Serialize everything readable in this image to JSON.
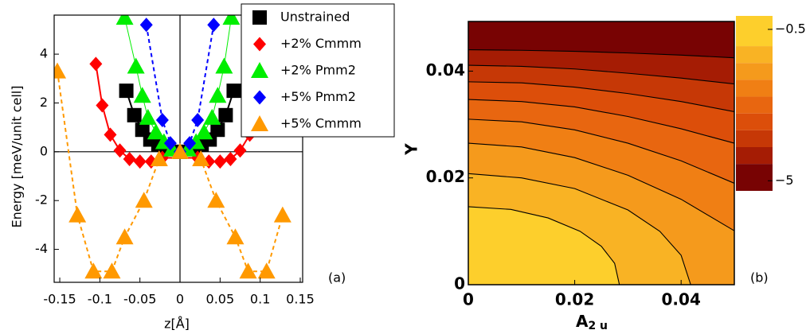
{
  "chart_data": [
    {
      "type": "line",
      "xlabel": "z[Å]",
      "ylabel": "Energy [meV/unit cell]",
      "panel_label": "(a)",
      "xlim": [
        -0.157,
        0.153
      ],
      "ylim": [
        -5.35,
        5.6
      ],
      "xticks": [
        -0.15,
        -0.1,
        -0.05,
        0,
        0.05,
        0.1,
        0.15
      ],
      "yticks": [
        -4,
        -2,
        0,
        2,
        4
      ],
      "zero_lines": true,
      "legend": "upper right",
      "series": [
        {
          "name": "Unstrained",
          "color": "#000000",
          "marker": "square",
          "linestyle": "solid",
          "x": [
            -0.067,
            -0.057,
            -0.047,
            -0.037,
            -0.027,
            -0.017,
            0,
            0.017,
            0.027,
            0.037,
            0.047,
            0.057,
            0.067
          ],
          "values": [
            2.5,
            1.5,
            0.9,
            0.5,
            0.3,
            0.15,
            0,
            0.15,
            0.3,
            0.5,
            0.9,
            1.5,
            2.5
          ]
        },
        {
          "name": "+2% Cmmm",
          "color": "#ff0000",
          "marker": "diamond",
          "linestyle": "solid",
          "x": [
            -0.105,
            -0.097,
            -0.087,
            -0.075,
            -0.063,
            -0.05,
            -0.036,
            -0.022,
            0.022,
            0.036,
            0.05,
            0.063,
            0.075,
            0.087,
            0.097,
            0.105
          ],
          "values": [
            3.6,
            1.9,
            0.7,
            0.05,
            -0.3,
            -0.4,
            -0.4,
            -0.25,
            -0.25,
            -0.4,
            -0.4,
            -0.3,
            0.05,
            0.7,
            1.9,
            3.6
          ]
        },
        {
          "name": "+2% Pmm2",
          "color": "#00ee00",
          "marker": "triangle",
          "linestyle": "thin",
          "x": [
            -0.069,
            -0.055,
            -0.047,
            -0.04,
            -0.03,
            -0.02,
            -0.01,
            0.01,
            0.02,
            0.03,
            0.04,
            0.047,
            0.055,
            0.064
          ],
          "values": [
            5.5,
            3.5,
            2.3,
            1.4,
            0.8,
            0.4,
            0.1,
            0.1,
            0.4,
            0.8,
            1.4,
            2.3,
            3.5,
            5.5
          ]
        },
        {
          "name": "+5% Pmm2",
          "color": "#0000ff",
          "marker": "diamond",
          "linestyle": "dashed",
          "x": [
            -0.042,
            -0.022,
            -0.012,
            0,
            0.012,
            0.022,
            0.042
          ],
          "values": [
            5.2,
            1.3,
            0.35,
            0,
            0.35,
            1.3,
            5.2
          ]
        },
        {
          "name": "+5% Cmmm",
          "color": "#ff9900",
          "marker": "triangle",
          "linestyle": "dashed",
          "x": [
            -0.153,
            -0.128,
            -0.108,
            -0.085,
            -0.069,
            -0.045,
            -0.026,
            0,
            0.026,
            0.045,
            0.069,
            0.085,
            0.108,
            0.128
          ],
          "values": [
            3.3,
            -2.6,
            -4.9,
            -4.9,
            -3.5,
            -2.0,
            -0.3,
            0,
            -0.3,
            -2.0,
            -3.5,
            -4.9,
            -4.9,
            -2.6
          ]
        }
      ]
    },
    {
      "type": "contour",
      "xlabel": "A",
      "xlabel_sub": "2 u",
      "ylabel": "Y",
      "panel_label": "(b)",
      "xlim": [
        0,
        0.05
      ],
      "ylim": [
        0,
        0.0493
      ],
      "xticks": [
        0,
        0.02,
        0.04
      ],
      "yticks": [
        0,
        0.02,
        0.04
      ],
      "contours": [
        {
          "level": -1,
          "x": [
            0,
            0.008,
            0.015,
            0.021,
            0.025,
            0.0275,
            0.0284
          ],
          "y": [
            0.0146,
            0.0141,
            0.0125,
            0.01,
            0.0072,
            0.004,
            0
          ]
        },
        {
          "level": -1.5,
          "x": [
            0,
            0.01,
            0.02,
            0.03,
            0.036,
            0.04,
            0.0418
          ],
          "y": [
            0.0208,
            0.02,
            0.018,
            0.014,
            0.01,
            0.0055,
            0
          ]
        },
        {
          "level": -2,
          "x": [
            0,
            0.01,
            0.02,
            0.03,
            0.04,
            0.05
          ],
          "y": [
            0.0265,
            0.0258,
            0.0238,
            0.0205,
            0.016,
            0.0101
          ]
        },
        {
          "level": -2.5,
          "x": [
            0,
            0.01,
            0.02,
            0.03,
            0.04,
            0.05
          ],
          "y": [
            0.031,
            0.0305,
            0.029,
            0.0265,
            0.0232,
            0.019
          ]
        },
        {
          "level": -3,
          "x": [
            0,
            0.01,
            0.02,
            0.03,
            0.04,
            0.05
          ],
          "y": [
            0.0347,
            0.0343,
            0.0333,
            0.0315,
            0.0292,
            0.0265
          ]
        },
        {
          "level": -3.5,
          "x": [
            0,
            0.01,
            0.02,
            0.03,
            0.04,
            0.05
          ],
          "y": [
            0.038,
            0.0378,
            0.037,
            0.0358,
            0.0343,
            0.0324
          ]
        },
        {
          "level": -4,
          "x": [
            0,
            0.01,
            0.02,
            0.03,
            0.04,
            0.05
          ],
          "y": [
            0.0411,
            0.0409,
            0.0404,
            0.0396,
            0.0387,
            0.0376
          ]
        },
        {
          "level": -4.5,
          "x": [
            0,
            0.01,
            0.02,
            0.03,
            0.04,
            0.05
          ],
          "y": [
            0.044,
            0.0439,
            0.0437,
            0.0434,
            0.043,
            0.0425
          ]
        }
      ],
      "band_colors": [
        "#fdcf2c",
        "#f9b324",
        "#f59a1c",
        "#f07f14",
        "#e86610",
        "#dc4e0a",
        "#c63806",
        "#a51c04",
        "#780303"
      ],
      "colorbar": {
        "clim": [
          -5.3,
          -0.1
        ],
        "ticks": [
          {
            "value": -0.5,
            "label": "−0.5"
          },
          {
            "value": -5,
            "label": "−5"
          }
        ]
      }
    }
  ]
}
